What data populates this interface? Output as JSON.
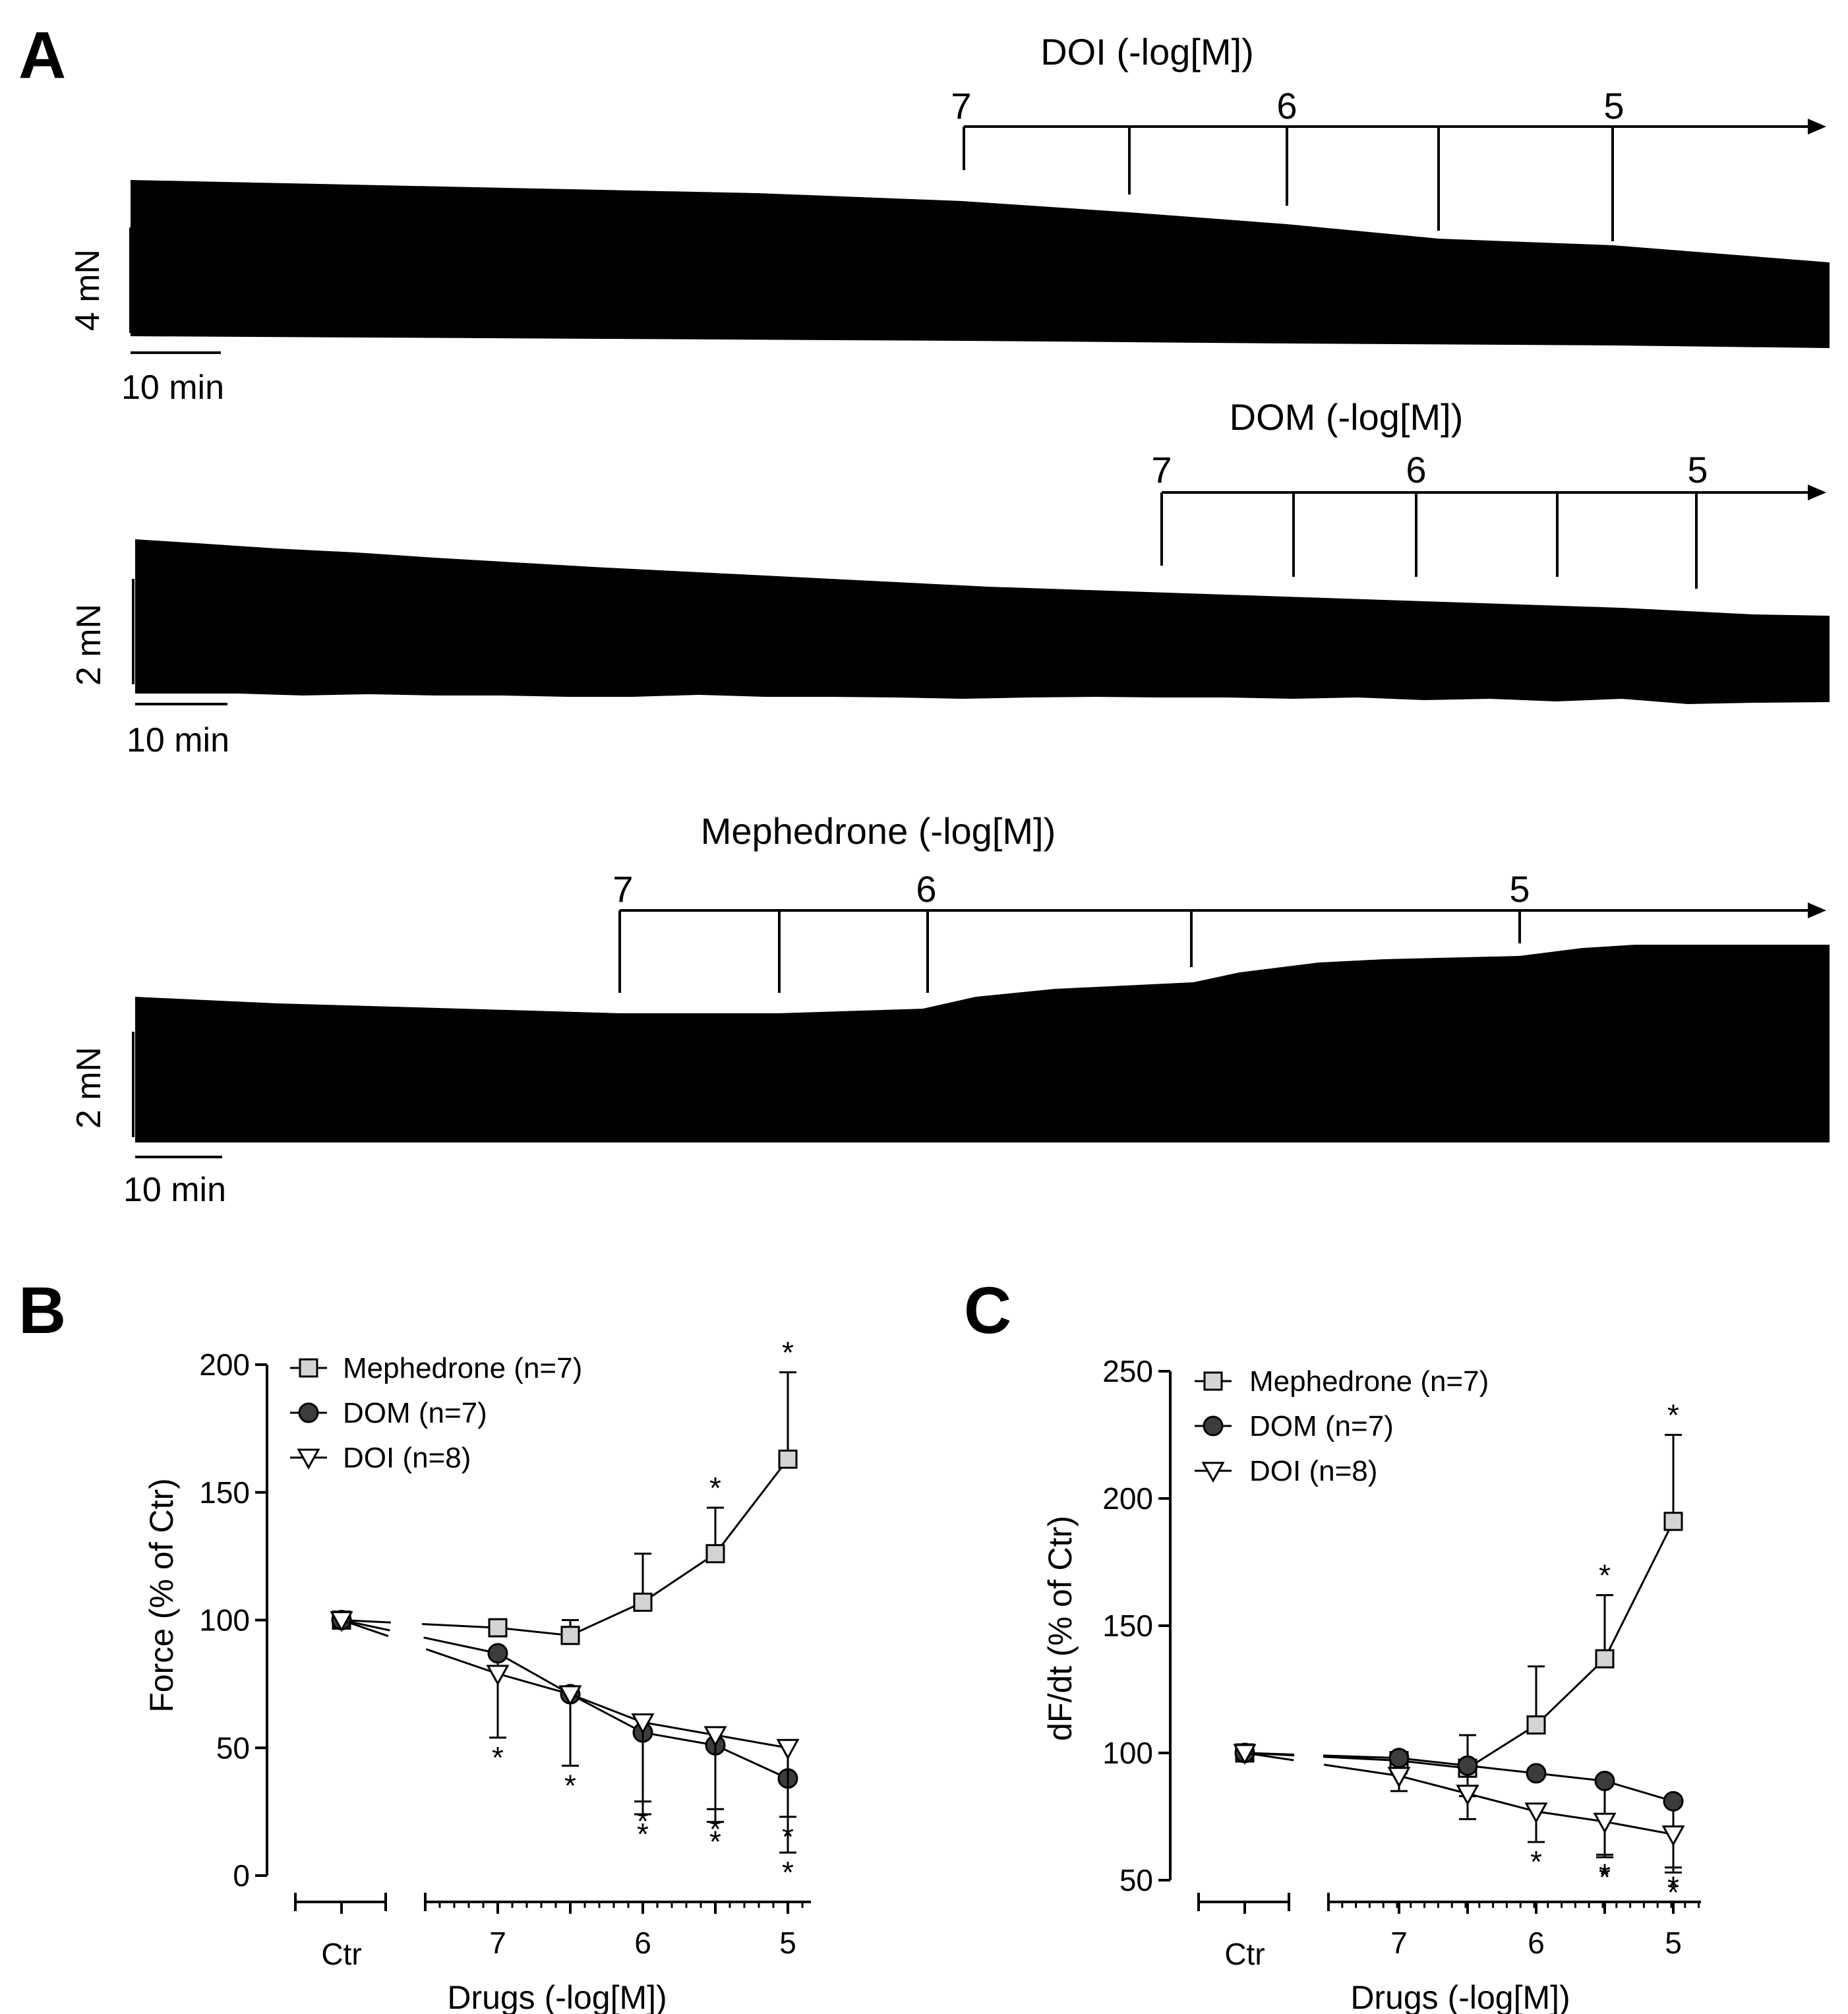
{
  "panels": {
    "a": "A",
    "b": "B",
    "c": "C"
  },
  "traces": [
    {
      "title": "DOI (-log[M])",
      "concentrations": [
        "7",
        "6",
        "5"
      ],
      "scale_force": "4 mN",
      "scale_time": "10 min"
    },
    {
      "title": "DOM (-log[M])",
      "concentrations": [
        "7",
        "6",
        "5"
      ],
      "scale_force": "2 mN",
      "scale_time": "10 min"
    },
    {
      "title": "Mephedrone (-log[M])",
      "concentrations": [
        "7",
        "6",
        "5"
      ],
      "scale_force": "2 mN",
      "scale_time": "10 min"
    }
  ],
  "chart_data": [
    {
      "type": "line",
      "panel": "B",
      "ylabel": "Force (% of Ctr)",
      "xlabel": "Drugs (-log[M])",
      "ylim": [
        0,
        200
      ],
      "yticks": [
        0,
        50,
        100,
        150,
        200
      ],
      "control_label": "Ctr",
      "x_categories": [
        "7",
        "",
        "6",
        "",
        "5"
      ],
      "x_values_log": [
        7,
        6.5,
        6,
        5.5,
        5
      ],
      "series": [
        {
          "name": "Mephedrone (n=7)",
          "marker": "square",
          "control": 100,
          "values": [
            97,
            94,
            107,
            126,
            163
          ],
          "errors": [
            0,
            6,
            19,
            18,
            34
          ],
          "stars": [
            false,
            false,
            false,
            true,
            true
          ]
        },
        {
          "name": "DOM (n=7)",
          "marker": "circle",
          "control": 100,
          "values": [
            87,
            71,
            56,
            51,
            38
          ],
          "errors": [
            0,
            28,
            32,
            30,
            29
          ],
          "stars": [
            true,
            true,
            true,
            true,
            true
          ]
        },
        {
          "name": "DOI (n=8)",
          "marker": "triangle-down",
          "control": 100,
          "values": [
            79,
            71,
            60,
            55,
            50
          ],
          "errors": [
            25,
            0,
            31,
            29,
            27
          ],
          "stars": [
            true,
            false,
            true,
            true,
            true
          ]
        }
      ]
    },
    {
      "type": "line",
      "panel": "C",
      "ylabel": "dF/dt (% of Ctr)",
      "xlabel": "Drugs (-log[M])",
      "ylim": [
        50,
        250
      ],
      "yticks": [
        50,
        100,
        150,
        200,
        250
      ],
      "control_label": "Ctr",
      "x_categories": [
        "7",
        "",
        "6",
        "",
        "5"
      ],
      "x_values_log": [
        7,
        6.5,
        6,
        5.5,
        5
      ],
      "series": [
        {
          "name": "Mephedrone (n=7)",
          "marker": "square",
          "control": 100,
          "values": [
            97,
            94,
            111,
            137,
            191
          ],
          "errors": [
            0,
            13,
            23,
            25,
            34
          ],
          "stars": [
            false,
            false,
            false,
            true,
            true
          ]
        },
        {
          "name": "DOM (n=7)",
          "marker": "circle",
          "control": 100,
          "values": [
            98,
            95,
            92,
            89,
            81
          ],
          "errors": [
            6,
            12,
            0,
            29,
            26
          ],
          "stars": [
            false,
            false,
            false,
            true,
            true
          ]
        },
        {
          "name": "DOI (n=8)",
          "marker": "triangle-down",
          "control": 100,
          "values": [
            91,
            84,
            77,
            73,
            68
          ],
          "errors": [
            6,
            10,
            12,
            14,
            15
          ],
          "stars": [
            false,
            false,
            true,
            true,
            true
          ]
        }
      ]
    }
  ]
}
